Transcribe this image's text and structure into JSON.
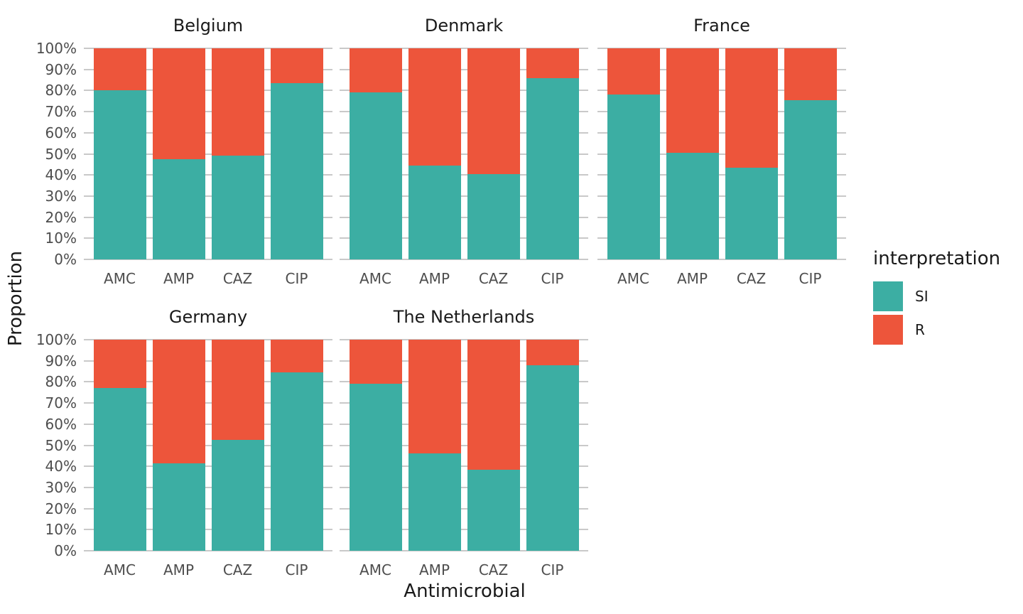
{
  "chart_data": {
    "type": "bar",
    "variant": "100-percent-stacked, faceted by country",
    "title": "",
    "xlabel": "Antimicrobial",
    "ylabel": "Proportion",
    "categories": [
      "AMC",
      "AMP",
      "CAZ",
      "CIP"
    ],
    "series_names": [
      "SI",
      "R"
    ],
    "ylim": [
      0,
      100
    ],
    "yticks_percent": [
      0,
      10,
      20,
      30,
      40,
      50,
      60,
      70,
      80,
      90,
      100
    ],
    "ytick_labels": [
      "0%",
      "10%",
      "20%",
      "30%",
      "40%",
      "50%",
      "60%",
      "70%",
      "80%",
      "90%",
      "100%"
    ],
    "grid": "horizontal-only",
    "grid_color": "#C9C9C9",
    "legend": {
      "title": "interpretation",
      "position": "right",
      "entries": [
        {
          "label": "SI",
          "color": "#3CAEA3"
        },
        {
          "label": "R",
          "color": "#ED553B"
        }
      ]
    },
    "facets": [
      {
        "title": "Belgium",
        "series": [
          {
            "name": "SI",
            "values": [
              80,
              47.5,
              49,
              83.5
            ]
          },
          {
            "name": "R",
            "values": [
              20,
              52.5,
              51,
              16.5
            ]
          }
        ]
      },
      {
        "title": "Denmark",
        "series": [
          {
            "name": "SI",
            "values": [
              79,
              44.5,
              40.5,
              86
            ]
          },
          {
            "name": "R",
            "values": [
              21,
              55.5,
              59.5,
              14
            ]
          }
        ]
      },
      {
        "title": "France",
        "series": [
          {
            "name": "SI",
            "values": [
              78,
              50.5,
              43.5,
              75.5
            ]
          },
          {
            "name": "R",
            "values": [
              22,
              49.5,
              56.5,
              24.5
            ]
          }
        ]
      },
      {
        "title": "Germany",
        "series": [
          {
            "name": "SI",
            "values": [
              77,
              41.5,
              52.5,
              84.5
            ]
          },
          {
            "name": "R",
            "values": [
              23,
              58.5,
              47.5,
              15.5
            ]
          }
        ]
      },
      {
        "title": "The Netherlands",
        "series": [
          {
            "name": "SI",
            "values": [
              79,
              46,
              38.5,
              88
            ]
          },
          {
            "name": "R",
            "values": [
              21,
              54,
              61.5,
              12
            ]
          }
        ]
      }
    ]
  }
}
